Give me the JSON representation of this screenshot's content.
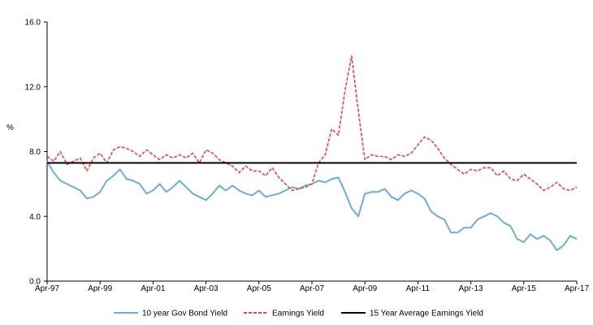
{
  "chart_data": {
    "type": "line",
    "title": "",
    "xlabel": "",
    "ylabel": "%",
    "ylim": [
      0,
      16
    ],
    "yticks": [
      0,
      4,
      8,
      12,
      16
    ],
    "ytick_labels": [
      "0.0",
      "4.0",
      "8.0",
      "12.0",
      "16.0"
    ],
    "xlim": [
      "1997-04",
      "2017-04"
    ],
    "xtick_labels": [
      "Apr-97",
      "Apr-99",
      "Apr-01",
      "Apr-03",
      "Apr-05",
      "Apr-07",
      "Apr-09",
      "Apr-11",
      "Apr-13",
      "Apr-15",
      "Apr-17"
    ],
    "grid": false,
    "legend_position": "bottom",
    "series": [
      {
        "name": "10 year Gov Bond Yield",
        "color": "#6baed6",
        "style": "solid",
        "points": [
          [
            "1997-04",
            7.4
          ],
          [
            "1997-07",
            6.7
          ],
          [
            "1997-10",
            6.2
          ],
          [
            "1998-01",
            6.0
          ],
          [
            "1998-04",
            5.8
          ],
          [
            "1998-07",
            5.6
          ],
          [
            "1998-10",
            5.1
          ],
          [
            "1999-01",
            5.2
          ],
          [
            "1999-04",
            5.5
          ],
          [
            "1999-07",
            6.2
          ],
          [
            "1999-10",
            6.5
          ],
          [
            "2000-01",
            6.9
          ],
          [
            "2000-04",
            6.3
          ],
          [
            "2000-07",
            6.2
          ],
          [
            "2000-10",
            6.0
          ],
          [
            "2001-01",
            5.4
          ],
          [
            "2001-04",
            5.6
          ],
          [
            "2001-07",
            6.0
          ],
          [
            "2001-10",
            5.5
          ],
          [
            "2002-01",
            5.8
          ],
          [
            "2002-04",
            6.2
          ],
          [
            "2002-07",
            5.8
          ],
          [
            "2002-10",
            5.4
          ],
          [
            "2003-01",
            5.2
          ],
          [
            "2003-04",
            5.0
          ],
          [
            "2003-07",
            5.4
          ],
          [
            "2003-10",
            5.9
          ],
          [
            "2004-01",
            5.6
          ],
          [
            "2004-04",
            5.9
          ],
          [
            "2004-07",
            5.6
          ],
          [
            "2004-10",
            5.4
          ],
          [
            "2005-01",
            5.3
          ],
          [
            "2005-04",
            5.6
          ],
          [
            "2005-07",
            5.2
          ],
          [
            "2005-10",
            5.3
          ],
          [
            "2006-01",
            5.4
          ],
          [
            "2006-04",
            5.6
          ],
          [
            "2006-07",
            5.8
          ],
          [
            "2006-10",
            5.7
          ],
          [
            "2007-01",
            5.9
          ],
          [
            "2007-04",
            6.0
          ],
          [
            "2007-07",
            6.2
          ],
          [
            "2007-10",
            6.1
          ],
          [
            "2008-01",
            6.3
          ],
          [
            "2008-04",
            6.4
          ],
          [
            "2008-07",
            5.5
          ],
          [
            "2008-10",
            4.5
          ],
          [
            "2009-01",
            4.0
          ],
          [
            "2009-04",
            5.4
          ],
          [
            "2009-07",
            5.5
          ],
          [
            "2009-10",
            5.5
          ],
          [
            "2010-01",
            5.7
          ],
          [
            "2010-04",
            5.2
          ],
          [
            "2010-07",
            5.0
          ],
          [
            "2010-10",
            5.4
          ],
          [
            "2011-01",
            5.6
          ],
          [
            "2011-04",
            5.4
          ],
          [
            "2011-07",
            5.1
          ],
          [
            "2011-10",
            4.3
          ],
          [
            "2012-01",
            4.0
          ],
          [
            "2012-04",
            3.8
          ],
          [
            "2012-07",
            3.0
          ],
          [
            "2012-10",
            3.0
          ],
          [
            "2013-01",
            3.3
          ],
          [
            "2013-04",
            3.3
          ],
          [
            "2013-07",
            3.8
          ],
          [
            "2013-10",
            4.0
          ],
          [
            "2014-01",
            4.2
          ],
          [
            "2014-04",
            4.0
          ],
          [
            "2014-07",
            3.6
          ],
          [
            "2014-10",
            3.4
          ],
          [
            "2015-01",
            2.6
          ],
          [
            "2015-04",
            2.4
          ],
          [
            "2015-07",
            2.9
          ],
          [
            "2015-10",
            2.6
          ],
          [
            "2016-01",
            2.8
          ],
          [
            "2016-04",
            2.5
          ],
          [
            "2016-07",
            1.9
          ],
          [
            "2016-10",
            2.2
          ],
          [
            "2017-01",
            2.8
          ],
          [
            "2017-04",
            2.6
          ]
        ]
      },
      {
        "name": "Earnings Yield",
        "color": "#ff3b3b",
        "style": "dashed",
        "points": [
          [
            "1997-04",
            7.7
          ],
          [
            "1997-07",
            7.4
          ],
          [
            "1997-10",
            8.0
          ],
          [
            "1998-01",
            7.2
          ],
          [
            "1998-04",
            7.4
          ],
          [
            "1998-07",
            7.6
          ],
          [
            "1998-10",
            6.8
          ],
          [
            "1999-01",
            7.6
          ],
          [
            "1999-04",
            7.9
          ],
          [
            "1999-07",
            7.3
          ],
          [
            "1999-10",
            8.1
          ],
          [
            "2000-01",
            8.3
          ],
          [
            "2000-04",
            8.2
          ],
          [
            "2000-07",
            8.0
          ],
          [
            "2000-10",
            7.7
          ],
          [
            "2001-01",
            8.1
          ],
          [
            "2001-04",
            7.8
          ],
          [
            "2001-07",
            7.5
          ],
          [
            "2001-10",
            7.8
          ],
          [
            "2002-01",
            7.6
          ],
          [
            "2002-04",
            7.8
          ],
          [
            "2002-07",
            7.6
          ],
          [
            "2002-10",
            7.9
          ],
          [
            "2003-01",
            7.3
          ],
          [
            "2003-04",
            8.1
          ],
          [
            "2003-07",
            7.9
          ],
          [
            "2003-10",
            7.5
          ],
          [
            "2004-01",
            7.3
          ],
          [
            "2004-04",
            7.1
          ],
          [
            "2004-07",
            6.7
          ],
          [
            "2004-10",
            7.1
          ],
          [
            "2005-01",
            6.8
          ],
          [
            "2005-04",
            6.8
          ],
          [
            "2005-07",
            6.5
          ],
          [
            "2005-10",
            7.0
          ],
          [
            "2006-01",
            6.4
          ],
          [
            "2006-04",
            6.0
          ],
          [
            "2006-07",
            5.6
          ],
          [
            "2006-10",
            5.7
          ],
          [
            "2007-01",
            5.8
          ],
          [
            "2007-04",
            6.0
          ],
          [
            "2007-07",
            7.3
          ],
          [
            "2007-10",
            7.8
          ],
          [
            "2008-01",
            9.4
          ],
          [
            "2008-04",
            9.0
          ],
          [
            "2008-07",
            11.8
          ],
          [
            "2008-10",
            13.9
          ],
          [
            "2009-01",
            10.5
          ],
          [
            "2009-04",
            7.5
          ],
          [
            "2009-07",
            7.8
          ],
          [
            "2009-10",
            7.7
          ],
          [
            "2010-01",
            7.7
          ],
          [
            "2010-04",
            7.5
          ],
          [
            "2010-07",
            7.8
          ],
          [
            "2010-10",
            7.7
          ],
          [
            "2011-01",
            7.9
          ],
          [
            "2011-04",
            8.4
          ],
          [
            "2011-07",
            8.9
          ],
          [
            "2011-10",
            8.7
          ],
          [
            "2012-01",
            8.2
          ],
          [
            "2012-04",
            7.6
          ],
          [
            "2012-07",
            7.2
          ],
          [
            "2012-10",
            6.9
          ],
          [
            "2013-01",
            6.6
          ],
          [
            "2013-04",
            6.9
          ],
          [
            "2013-07",
            6.8
          ],
          [
            "2013-10",
            7.0
          ],
          [
            "2014-01",
            7.0
          ],
          [
            "2014-04",
            6.5
          ],
          [
            "2014-07",
            6.8
          ],
          [
            "2014-10",
            6.3
          ],
          [
            "2015-01",
            6.2
          ],
          [
            "2015-04",
            6.6
          ],
          [
            "2015-07",
            6.3
          ],
          [
            "2015-10",
            6.0
          ],
          [
            "2016-01",
            5.6
          ],
          [
            "2016-04",
            5.8
          ],
          [
            "2016-07",
            6.1
          ],
          [
            "2016-10",
            5.7
          ],
          [
            "2017-01",
            5.6
          ],
          [
            "2017-04",
            5.8
          ]
        ]
      },
      {
        "name": "15 Year Average Earnings Yield",
        "color": "#000000",
        "style": "solid",
        "points": [
          [
            "1997-04",
            7.3
          ],
          [
            "2017-04",
            7.3
          ]
        ]
      }
    ]
  }
}
